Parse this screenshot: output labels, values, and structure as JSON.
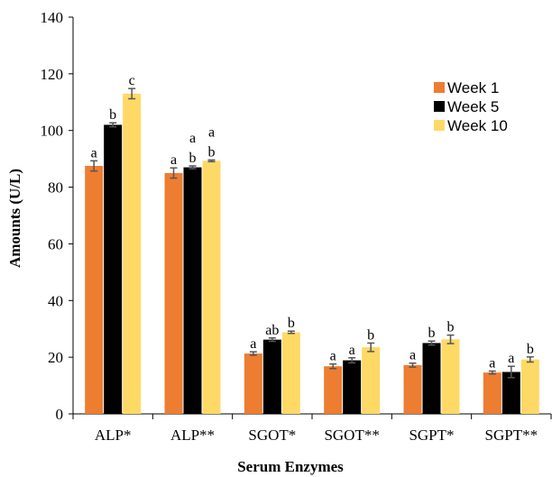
{
  "chart_data": {
    "type": "bar",
    "xlabel": "Serum Enzymes",
    "ylabel": "Amounts (U/L)",
    "ylim": [
      0,
      140
    ],
    "yticks": [
      0,
      20,
      40,
      60,
      80,
      100,
      120,
      140
    ],
    "categories": [
      "ALP*",
      "ALP**",
      "SGOT*",
      "SGOT**",
      "SGPT*",
      "SGPT**"
    ],
    "legend_position": "right",
    "grid": false,
    "series": [
      {
        "name": "Week 1",
        "color": "#ED7D31",
        "values": [
          87.5,
          85.0,
          21.3,
          16.8,
          17.2,
          14.6
        ],
        "errors": [
          1.8,
          1.8,
          0.6,
          0.8,
          0.7,
          0.5
        ],
        "labels": [
          "a",
          "a",
          "a",
          "a",
          "a",
          "a"
        ]
      },
      {
        "name": "Week 5",
        "color": "#000000",
        "values": [
          102.0,
          87.0,
          26.2,
          18.9,
          25.0,
          14.8
        ],
        "errors": [
          0.7,
          0.5,
          0.6,
          0.9,
          0.7,
          2.0
        ],
        "labels": [
          "b",
          "b",
          "ab",
          "a",
          "b",
          "a"
        ],
        "labels_top": [
          "",
          "a",
          "",
          "",
          "",
          ""
        ]
      },
      {
        "name": "Week 10",
        "color": "#FFD966",
        "values": [
          113.0,
          89.3,
          28.8,
          23.5,
          26.3,
          19.2
        ],
        "errors": [
          1.8,
          0.3,
          0.4,
          1.5,
          1.5,
          0.9
        ],
        "labels": [
          "c",
          "b",
          "b",
          "b",
          "b",
          "b"
        ],
        "labels_top": [
          "",
          "a",
          "",
          "",
          "",
          ""
        ]
      }
    ]
  }
}
